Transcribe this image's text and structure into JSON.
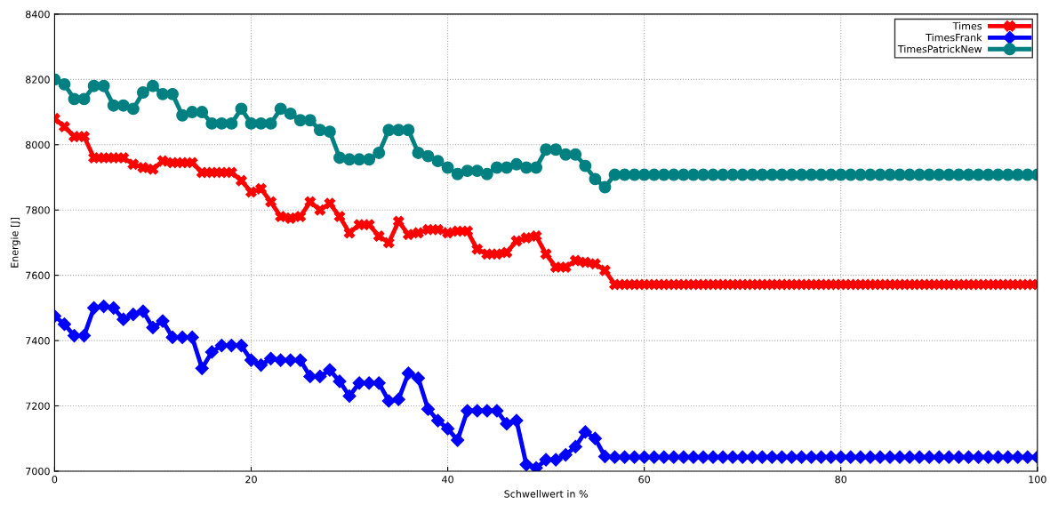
{
  "chart_data": {
    "type": "line",
    "xlabel": "Schwellwert in %",
    "ylabel": "Energie [J]",
    "x": [
      0,
      1,
      2,
      3,
      4,
      5,
      6,
      7,
      8,
      9,
      10,
      11,
      12,
      13,
      14,
      15,
      16,
      17,
      18,
      19,
      20,
      21,
      22,
      23,
      24,
      25,
      26,
      27,
      28,
      29,
      30,
      31,
      32,
      33,
      34,
      35,
      36,
      37,
      38,
      39,
      40,
      41,
      42,
      43,
      44,
      45,
      46,
      47,
      48,
      49,
      50,
      51,
      52,
      53,
      54,
      55,
      56,
      57,
      58,
      59,
      60,
      61,
      62,
      63,
      64,
      65,
      66,
      67,
      68,
      69,
      70,
      71,
      72,
      73,
      74,
      75,
      76,
      77,
      78,
      79,
      80,
      81,
      82,
      83,
      84,
      85,
      86,
      87,
      88,
      89,
      90,
      91,
      92,
      93,
      94,
      95,
      96,
      97,
      98,
      99,
      100
    ],
    "xlim": [
      0,
      100
    ],
    "xticks": [
      0,
      20,
      40,
      60,
      80,
      100
    ],
    "ylim": [
      7000,
      8400
    ],
    "yticks": [
      7000,
      7200,
      7400,
      7600,
      7800,
      8000,
      8200,
      8400
    ],
    "grid": true,
    "legend": "top right",
    "line_style": "solid",
    "series": [
      {
        "name": "Times",
        "color": "#ff0000",
        "marker": "cross",
        "values": [
          8080,
          8055,
          8025,
          8025,
          7960,
          7960,
          7960,
          7960,
          7940,
          7930,
          7925,
          7950,
          7945,
          7945,
          7945,
          7915,
          7915,
          7915,
          7915,
          7890,
          7855,
          7865,
          7825,
          7780,
          7775,
          7780,
          7825,
          7800,
          7820,
          7780,
          7730,
          7755,
          7755,
          7720,
          7700,
          7765,
          7725,
          7730,
          7740,
          7740,
          7730,
          7735,
          7735,
          7680,
          7665,
          7665,
          7670,
          7705,
          7715,
          7720,
          7665,
          7625,
          7625,
          7645,
          7640,
          7635,
          7615,
          7572,
          7572,
          7572,
          7572,
          7572,
          7572,
          7572,
          7572,
          7572,
          7572,
          7572,
          7572,
          7572,
          7572,
          7572,
          7572,
          7572,
          7572,
          7572,
          7572,
          7572,
          7572,
          7572,
          7572,
          7572,
          7572,
          7572,
          7572,
          7572,
          7572,
          7572,
          7572,
          7572,
          7572,
          7572,
          7572,
          7572,
          7572,
          7572,
          7572,
          7572,
          7572,
          7572,
          7572
        ]
      },
      {
        "name": "TimesFrank",
        "color": "#0000ff",
        "marker": "diamond",
        "values": [
          7475,
          7450,
          7415,
          7415,
          7500,
          7505,
          7500,
          7465,
          7480,
          7490,
          7440,
          7460,
          7410,
          7410,
          7410,
          7315,
          7365,
          7385,
          7385,
          7385,
          7340,
          7325,
          7345,
          7340,
          7340,
          7340,
          7290,
          7290,
          7310,
          7275,
          7230,
          7270,
          7270,
          7270,
          7215,
          7220,
          7300,
          7285,
          7190,
          7155,
          7130,
          7095,
          7185,
          7185,
          7185,
          7185,
          7145,
          7155,
          7020,
          7010,
          7035,
          7035,
          7050,
          7075,
          7120,
          7100,
          7045,
          7043,
          7043,
          7043,
          7043,
          7043,
          7043,
          7043,
          7043,
          7043,
          7043,
          7043,
          7043,
          7043,
          7043,
          7043,
          7043,
          7043,
          7043,
          7043,
          7043,
          7043,
          7043,
          7043,
          7043,
          7043,
          7043,
          7043,
          7043,
          7043,
          7043,
          7043,
          7043,
          7043,
          7043,
          7043,
          7043,
          7043,
          7043,
          7043,
          7043,
          7043,
          7043,
          7043,
          7043
        ]
      },
      {
        "name": "TimesPatrickNew",
        "color": "#008080",
        "marker": "circle",
        "values": [
          8200,
          8185,
          8140,
          8140,
          8180,
          8180,
          8120,
          8120,
          8110,
          8160,
          8180,
          8155,
          8155,
          8090,
          8100,
          8100,
          8065,
          8065,
          8065,
          8110,
          8065,
          8065,
          8065,
          8110,
          8095,
          8075,
          8075,
          8045,
          8040,
          7960,
          7955,
          7955,
          7955,
          7975,
          8045,
          8045,
          8045,
          7975,
          7965,
          7950,
          7930,
          7910,
          7920,
          7920,
          7910,
          7930,
          7930,
          7940,
          7930,
          7930,
          7985,
          7985,
          7970,
          7970,
          7935,
          7895,
          7870,
          7908,
          7908,
          7908,
          7908,
          7908,
          7908,
          7908,
          7908,
          7908,
          7908,
          7908,
          7908,
          7908,
          7908,
          7908,
          7908,
          7908,
          7908,
          7908,
          7908,
          7908,
          7908,
          7908,
          7908,
          7908,
          7908,
          7908,
          7908,
          7908,
          7908,
          7908,
          7908,
          7908,
          7908,
          7908,
          7908,
          7908,
          7908,
          7908,
          7908,
          7908,
          7908,
          7908,
          7908
        ]
      }
    ]
  }
}
